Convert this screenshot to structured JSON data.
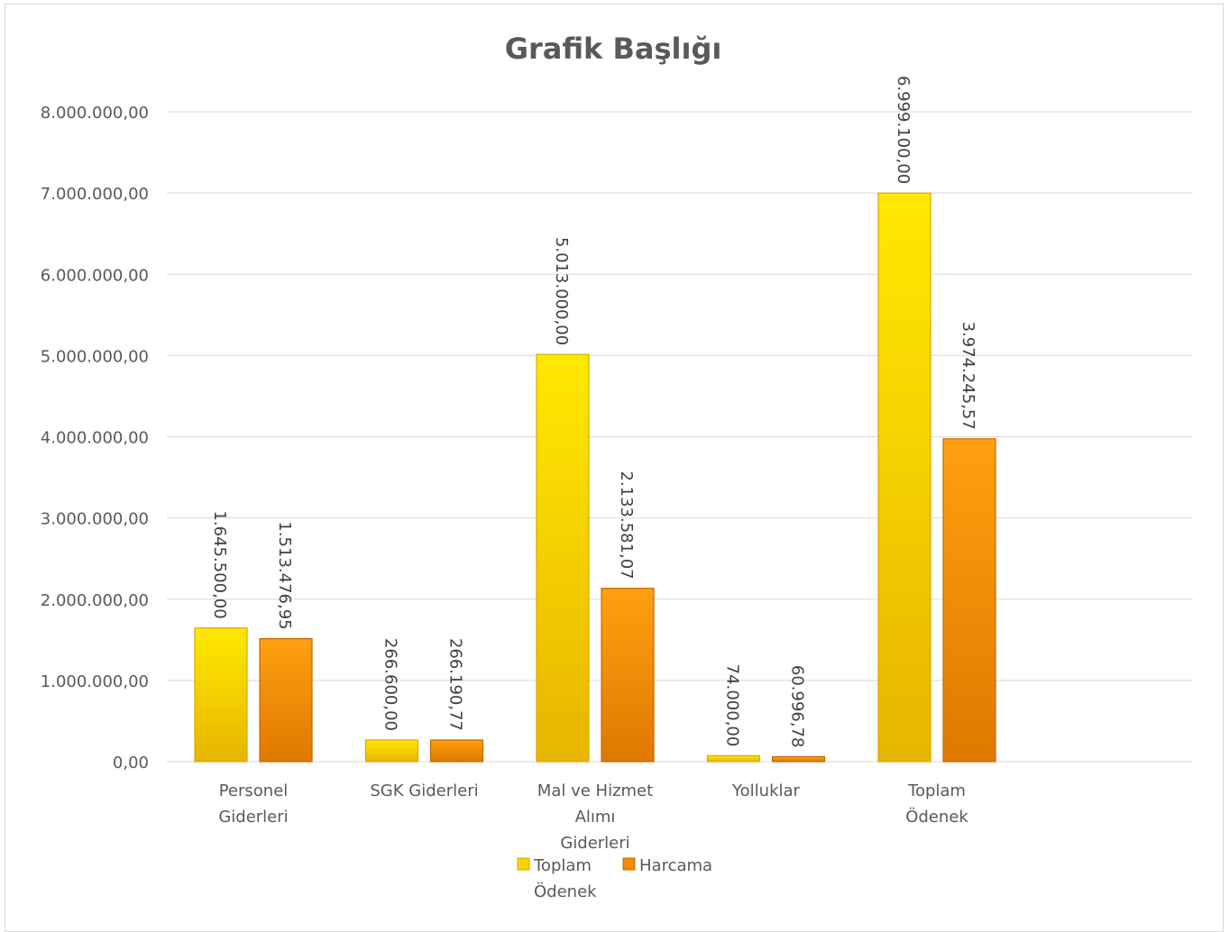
{
  "colors": {
    "toplam_odenek": "#f0c800",
    "harcama": "#f08a00",
    "grid": "#d9d9d9",
    "text": "#595959"
  },
  "chart_data": {
    "type": "bar",
    "title": "Grafik Başlığı",
    "categories": [
      [
        "Personel",
        "Giderleri"
      ],
      [
        "SGK Giderleri"
      ],
      [
        "Mal ve Hizmet",
        "Alımı",
        "Giderleri"
      ],
      [
        "Yolluklar"
      ],
      [
        "Toplam",
        "Ödenek"
      ]
    ],
    "series": [
      {
        "name": "Toplam Ödenek",
        "name_lines": [
          "Toplam",
          "Ödenek"
        ],
        "values": [
          1645500.0,
          266600.0,
          5013000.0,
          74000.0,
          6999100.0
        ],
        "labels": [
          "1.645.500,00",
          "266.600,00",
          "5.013.000,00",
          "74.000,00",
          "6.999.100,00"
        ]
      },
      {
        "name": "Harcama",
        "name_lines": [
          "Harcama"
        ],
        "values": [
          1513476.95,
          266190.77,
          2133581.07,
          60996.78,
          3974245.57
        ],
        "labels": [
          "1.513.476,95",
          "266.190,77",
          "2.133.581,07",
          "60.996,78",
          "3.974.245,57"
        ]
      }
    ],
    "yticks": [
      "0,00",
      "1.000.000,00",
      "2.000.000,00",
      "3.000.000,00",
      "4.000.000,00",
      "5.000.000,00",
      "6.000.000,00",
      "7.000.000,00",
      "8.000.000,00"
    ],
    "ylim": [
      0,
      8000000
    ],
    "grid": true,
    "legend_position": "bottom",
    "xlabel": "",
    "ylabel": ""
  }
}
